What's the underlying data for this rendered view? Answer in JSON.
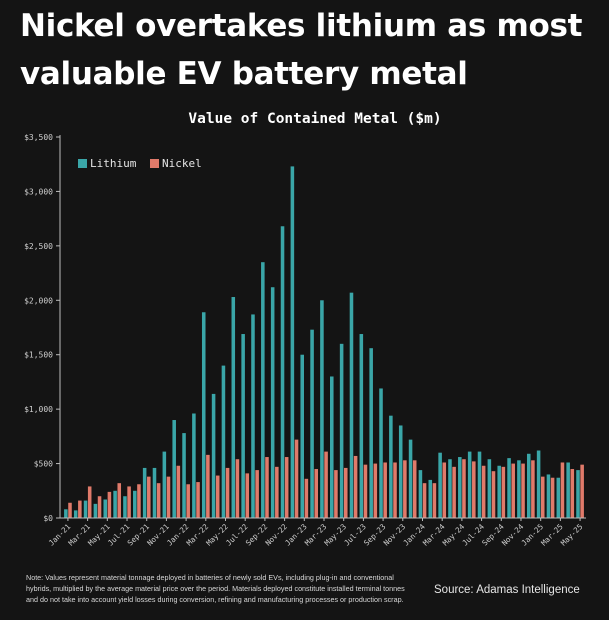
{
  "headline": {
    "line1": "Nickel overtakes lithium as most",
    "line2": "valuable EV battery metal"
  },
  "note": "Note: Values represent material tonnage deployed in batteries of newly sold EVs, including plug-in and conventional hybrids, multiplied by the average material price over the period. Materials deployed constitute installed terminal tonnes and do not take into account yield losses during conversion, refining and manufacturing processes or production scrap.",
  "source": "Source: Adamas Intelligence",
  "colors": {
    "lithium": "#3aa6a8",
    "nickel": "#e07a6a",
    "axis": "#bdbdbd",
    "background": "#141414"
  },
  "chart_data": {
    "type": "bar",
    "title": "Value of Contained Metal ($m)",
    "xlabel": "",
    "ylabel": "",
    "ylim": [
      0,
      3500
    ],
    "yticks": [
      0,
      500,
      1000,
      1500,
      2000,
      2500,
      3000,
      3500
    ],
    "ytick_labels": [
      "$0",
      "$500",
      "$1,000",
      "$1,500",
      "$2,000",
      "$2,500",
      "$3,000",
      "$3,500"
    ],
    "legend_position": "top-left",
    "categories": [
      "Jan-21",
      "Feb-21",
      "Mar-21",
      "Apr-21",
      "May-21",
      "Jun-21",
      "Jul-21",
      "Aug-21",
      "Sep-21",
      "Oct-21",
      "Nov-21",
      "Dec-21",
      "Jan-22",
      "Feb-22",
      "Mar-22",
      "Apr-22",
      "May-22",
      "Jun-22",
      "Jul-22",
      "Aug-22",
      "Sep-22",
      "Oct-22",
      "Nov-22",
      "Dec-22",
      "Jan-23",
      "Feb-23",
      "Mar-23",
      "Apr-23",
      "May-23",
      "Jun-23",
      "Jul-23",
      "Aug-23",
      "Sep-23",
      "Oct-23",
      "Nov-23",
      "Dec-23",
      "Jan-24",
      "Feb-24",
      "Mar-24",
      "Apr-24",
      "May-24",
      "Jun-24",
      "Jul-24",
      "Aug-24",
      "Sep-24",
      "Oct-24",
      "Nov-24",
      "Dec-24",
      "Jan-25",
      "Feb-25",
      "Mar-25",
      "Apr-25",
      "May-25"
    ],
    "xtick_labels": [
      "Jan-21",
      "Mar-21",
      "May-21",
      "Jul-21",
      "Sep-21",
      "Nov-21",
      "Jan-22",
      "Mar-22",
      "May-22",
      "Jul-22",
      "Sep-22",
      "Nov-22",
      "Jan-23",
      "Mar-23",
      "May-23",
      "Jul-23",
      "Sep-23",
      "Nov-23",
      "Jan-24",
      "Mar-24",
      "May-24",
      "Jul-24",
      "Sep-24",
      "Nov-24",
      "Jan-25",
      "Mar-25",
      "May-25"
    ],
    "series": [
      {
        "name": "Lithium",
        "values": [
          80,
          70,
          160,
          130,
          170,
          250,
          200,
          250,
          460,
          460,
          610,
          900,
          780,
          960,
          1890,
          1140,
          1400,
          2030,
          1690,
          1870,
          2350,
          2120,
          2680,
          3230,
          1500,
          1730,
          2000,
          1300,
          1600,
          2070,
          1690,
          1560,
          1190,
          940,
          850,
          720,
          440,
          350,
          600,
          540,
          560,
          610,
          610,
          540,
          480,
          550,
          530,
          590,
          620,
          400,
          370,
          510,
          440
        ]
      },
      {
        "name": "Nickel",
        "values": [
          140,
          160,
          290,
          200,
          240,
          320,
          290,
          310,
          380,
          320,
          380,
          480,
          310,
          330,
          580,
          390,
          460,
          540,
          410,
          440,
          560,
          470,
          560,
          720,
          360,
          450,
          610,
          440,
          460,
          570,
          490,
          500,
          510,
          510,
          530,
          530,
          320,
          320,
          510,
          470,
          540,
          520,
          480,
          430,
          470,
          500,
          500,
          530,
          380,
          370,
          510,
          450,
          490
        ]
      }
    ]
  }
}
